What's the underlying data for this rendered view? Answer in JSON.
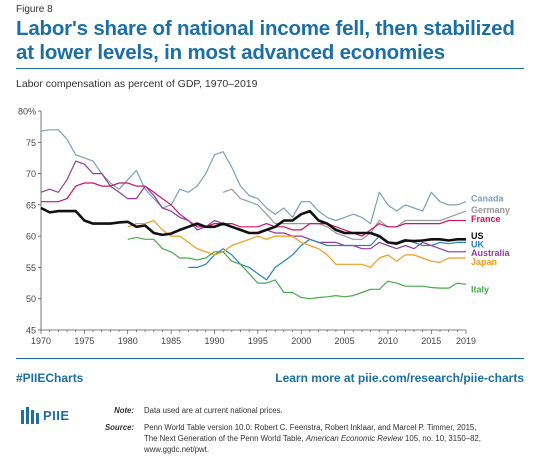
{
  "figure_label": "Figure 8",
  "title": "Labor's share of national income fell, then stabilized at lower levels, in most advanced economies",
  "footer": {
    "hashtag": "#PIIECharts",
    "learn_more": "Learn more at piie.com/research/piie-charts",
    "logo_text": "PIIE",
    "note_label": "Note:",
    "note_text": "Data used are at current national prices.",
    "source_label": "Source:",
    "source_text_1": "Penn World Table version 10.0: Robert C. Feenstra, Robert Inklaar, and Marcel P. Timmer, 2015,",
    "source_text_2a": "The Next Generation of the Penn World Table, ",
    "source_text_2b": "American Economic Review",
    "source_text_2c": " 105, no. 10, 3150–82,",
    "source_text_3": "www.ggdc.net/pwt."
  },
  "colors": {
    "brand": "#1b6fa6",
    "Canada": "#7d9fbe",
    "Germany": "#999999",
    "France": "#cc1566",
    "US": "#111111",
    "UK": "#2c82b8",
    "Australia": "#8e3ea0",
    "Japan": "#f39a1e",
    "Italy": "#4aa84d"
  },
  "chart_data": {
    "type": "line",
    "title": "",
    "subtitle": "Labor compensation as percent of GDP, 1970–2019",
    "xlabel": "",
    "ylabel": "",
    "xlim": [
      1970,
      2019
    ],
    "ylim": [
      45,
      80
    ],
    "x_ticks": [
      1970,
      1975,
      1980,
      1985,
      1990,
      1995,
      2000,
      2005,
      2010,
      2015,
      2019
    ],
    "y_ticks": [
      45,
      50,
      55,
      60,
      65,
      70,
      75,
      80
    ],
    "y_tick_labels": [
      "45",
      "50",
      "55",
      "60",
      "65",
      "70",
      "75",
      "80%"
    ],
    "grid": false,
    "legend": "direct labels at right end of lines",
    "series": [
      {
        "name": "Canada",
        "x": [
          1970,
          1971,
          1972,
          1973,
          1974,
          1975,
          1976,
          1977,
          1978,
          1979,
          1980,
          1981,
          1982,
          1983,
          1984,
          1985,
          1986,
          1987,
          1988,
          1989,
          1990,
          1991,
          1992,
          1993,
          1994,
          1995,
          1996,
          1997,
          1998,
          1999,
          2000,
          2001,
          2002,
          2003,
          2004,
          2005,
          2006,
          2007,
          2008,
          2009,
          2010,
          2011,
          2012,
          2013,
          2014,
          2015,
          2016,
          2017,
          2018,
          2019
        ],
        "y": [
          76.8,
          77,
          77,
          75.5,
          73,
          72.5,
          72,
          70,
          68.5,
          67.5,
          69,
          70.5,
          67.5,
          66,
          64.5,
          65,
          67.5,
          67,
          68,
          70,
          73,
          73.5,
          71,
          68,
          66.5,
          66,
          64.5,
          63.5,
          64.5,
          63,
          65.5,
          65.5,
          64,
          63,
          62.5,
          63,
          63.5,
          63,
          62,
          67,
          65,
          64,
          65,
          64.5,
          64,
          67,
          65.5,
          65,
          65,
          65.5
        ]
      },
      {
        "name": "Germany",
        "x": [
          1991,
          1992,
          1993,
          1994,
          1995,
          1996,
          1997,
          1998,
          1999,
          2000,
          2001,
          2002,
          2003,
          2004,
          2005,
          2006,
          2007,
          2008,
          2009,
          2010,
          2011,
          2012,
          2013,
          2014,
          2015,
          2016,
          2017,
          2018,
          2019
        ],
        "y": [
          67,
          67.5,
          66,
          65.5,
          65,
          63.5,
          62,
          62,
          62,
          62,
          62,
          62,
          61.5,
          60.5,
          60,
          59.5,
          59.5,
          60.5,
          62.5,
          61.5,
          61.5,
          62.5,
          62.5,
          62.5,
          62.5,
          62.5,
          63,
          63.5,
          64
        ]
      },
      {
        "name": "France",
        "x": [
          1970,
          1971,
          1972,
          1973,
          1974,
          1975,
          1976,
          1977,
          1978,
          1979,
          1980,
          1981,
          1982,
          1983,
          1984,
          1985,
          1986,
          1987,
          1988,
          1989,
          1990,
          1991,
          1992,
          1993,
          1994,
          1995,
          1996,
          1997,
          1998,
          1999,
          2000,
          2001,
          2002,
          2003,
          2004,
          2005,
          2006,
          2007,
          2008,
          2009,
          2010,
          2011,
          2012,
          2013,
          2014,
          2015,
          2016,
          2017,
          2018,
          2019
        ],
        "y": [
          65.5,
          65.5,
          65.5,
          66,
          68,
          68.5,
          68.5,
          68,
          68,
          68.5,
          68.5,
          68,
          68,
          67,
          66,
          65,
          63.5,
          62.5,
          61.5,
          61.5,
          62,
          62,
          62,
          61.5,
          61.5,
          61.5,
          62,
          61.5,
          61.5,
          61,
          61,
          62,
          62,
          62,
          61.5,
          61,
          60.5,
          60,
          61,
          62,
          61.5,
          61.5,
          62,
          62,
          62,
          62,
          62,
          62.5,
          62.5,
          62.5
        ]
      },
      {
        "name": "US",
        "x": [
          1970,
          1971,
          1972,
          1973,
          1974,
          1975,
          1976,
          1977,
          1978,
          1979,
          1980,
          1981,
          1982,
          1983,
          1984,
          1985,
          1986,
          1987,
          1988,
          1989,
          1990,
          1991,
          1992,
          1993,
          1994,
          1995,
          1996,
          1997,
          1998,
          1999,
          2000,
          2001,
          2002,
          2003,
          2004,
          2005,
          2006,
          2007,
          2008,
          2009,
          2010,
          2011,
          2012,
          2013,
          2014,
          2015,
          2016,
          2017,
          2018,
          2019
        ],
        "y": [
          64.5,
          63.8,
          64,
          64,
          64,
          62.5,
          62,
          62,
          62,
          62.2,
          62.3,
          61.5,
          61.7,
          60.5,
          60.2,
          60.4,
          61,
          61.5,
          62,
          61.5,
          61.5,
          62,
          61.5,
          61,
          60.5,
          60.5,
          61,
          61.5,
          62.5,
          62.5,
          63.5,
          64,
          62.5,
          62,
          61,
          60.5,
          60.5,
          60.5,
          60.5,
          60,
          59,
          58.8,
          59.3,
          59.2,
          59.3,
          59.5,
          59.5,
          59.3,
          59.5,
          59.5
        ]
      },
      {
        "name": "UK",
        "x": [
          1987,
          1988,
          1989,
          1990,
          1991,
          1992,
          1993,
          1994,
          1995,
          1996,
          1997,
          1998,
          1999,
          2000,
          2001,
          2002,
          2003,
          2004,
          2005,
          2006,
          2007,
          2008,
          2009,
          2010,
          2011,
          2012,
          2013,
          2014,
          2015,
          2016,
          2017,
          2018,
          2019
        ],
        "y": [
          55,
          55,
          55.5,
          57,
          58,
          57,
          55.5,
          55,
          54,
          53,
          55,
          56,
          57,
          58.5,
          59.5,
          59,
          58.5,
          58.5,
          58.5,
          58.5,
          58.5,
          58.5,
          60,
          59,
          59,
          59.5,
          59,
          58.5,
          58.5,
          59,
          58.8,
          59,
          59
        ]
      },
      {
        "name": "Australia",
        "x": [
          1970,
          1971,
          1972,
          1973,
          1974,
          1975,
          1976,
          1977,
          1978,
          1979,
          1980,
          1981,
          1982,
          1983,
          1984,
          1985,
          1986,
          1987,
          1988,
          1989,
          1990,
          1991,
          1992,
          1993,
          1994,
          1995,
          1996,
          1997,
          1998,
          1999,
          2000,
          2001,
          2002,
          2003,
          2004,
          2005,
          2006,
          2007,
          2008,
          2009,
          2010,
          2011,
          2012,
          2013,
          2014,
          2015,
          2016,
          2017,
          2018,
          2019
        ],
        "y": [
          67,
          67.5,
          67,
          69,
          72,
          71.5,
          70,
          70,
          68,
          67,
          66,
          66,
          68,
          66.5,
          64.5,
          64,
          63,
          62.5,
          61,
          61.5,
          62.5,
          62,
          61.5,
          61,
          60.5,
          60.5,
          61,
          60.5,
          60.5,
          60,
          60,
          59.5,
          59,
          59,
          59,
          58.5,
          58.5,
          58,
          58,
          59,
          58.5,
          58,
          58.5,
          58,
          59,
          58.5,
          58,
          57.5,
          57.5,
          57.5
        ]
      },
      {
        "name": "Japan",
        "x": [
          1980,
          1981,
          1982,
          1983,
          1984,
          1985,
          1986,
          1987,
          1988,
          1989,
          1990,
          1991,
          1992,
          1993,
          1994,
          1995,
          1996,
          1997,
          1998,
          1999,
          2000,
          2001,
          2002,
          2003,
          2004,
          2005,
          2006,
          2007,
          2008,
          2009,
          2010,
          2011,
          2012,
          2013,
          2014,
          2015,
          2016,
          2017,
          2018,
          2019
        ],
        "y": [
          61.5,
          62,
          62,
          62.5,
          61,
          60,
          60,
          59,
          58,
          57.5,
          57,
          57.5,
          58.5,
          59,
          59.5,
          60,
          59.5,
          60,
          60,
          60,
          59,
          58.5,
          58,
          57,
          55.5,
          55.5,
          55.5,
          55.5,
          55,
          56.5,
          57,
          56,
          57,
          57,
          56.5,
          56,
          55.8,
          56.5,
          56.5,
          56.5
        ]
      },
      {
        "name": "Italy",
        "x": [
          1980,
          1981,
          1982,
          1983,
          1984,
          1985,
          1986,
          1987,
          1988,
          1989,
          1990,
          1991,
          1992,
          1993,
          1994,
          1995,
          1996,
          1997,
          1998,
          1999,
          2000,
          2001,
          2002,
          2003,
          2004,
          2005,
          2006,
          2007,
          2008,
          2009,
          2010,
          2011,
          2012,
          2013,
          2014,
          2015,
          2016,
          2017,
          2018,
          2019
        ],
        "y": [
          59.5,
          59.8,
          59.5,
          59.5,
          58,
          57.5,
          56.5,
          56.5,
          56.2,
          56.5,
          57.5,
          57.5,
          56,
          55.5,
          54,
          52.5,
          52.5,
          53,
          51,
          51,
          50.2,
          50,
          50.2,
          50.3,
          50.5,
          50.3,
          50.5,
          51,
          51.5,
          51.5,
          52.8,
          52.5,
          52,
          52,
          52,
          51.8,
          51.7,
          51.7,
          52.5,
          52.3
        ]
      }
    ]
  }
}
